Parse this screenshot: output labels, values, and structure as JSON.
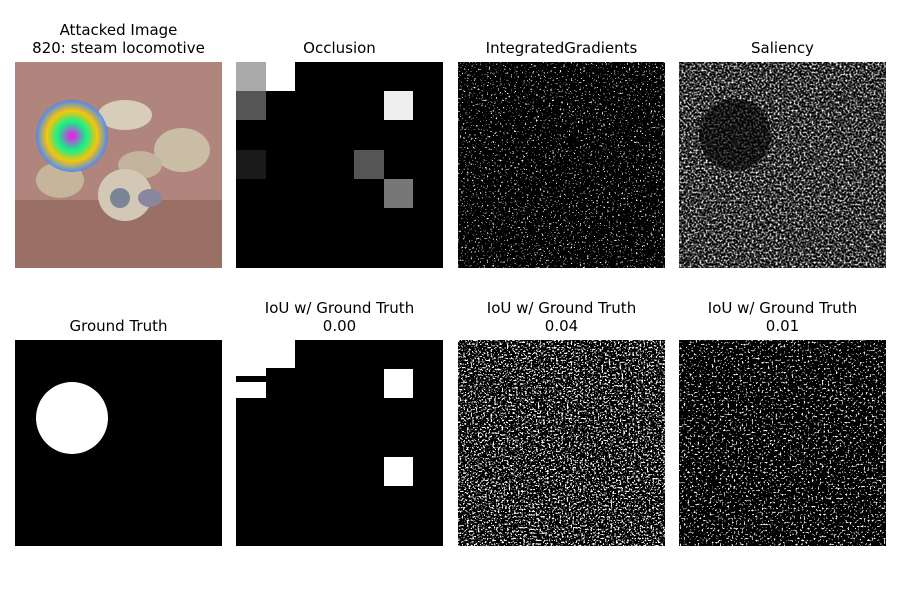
{
  "panels": [
    {
      "title": "Attacked Image",
      "subtitle": "820: steam locomotive"
    },
    {
      "title": "Occlusion"
    },
    {
      "title": "IntegratedGradients"
    },
    {
      "title": "Saliency"
    },
    {
      "title": "Ground Truth"
    },
    {
      "title": "IoU w/ Ground Truth",
      "subtitle": "0.00"
    },
    {
      "title": "IoU w/ Ground Truth",
      "subtitle": "0.04"
    },
    {
      "title": "IoU w/ Ground Truth",
      "subtitle": "0.01"
    }
  ]
}
